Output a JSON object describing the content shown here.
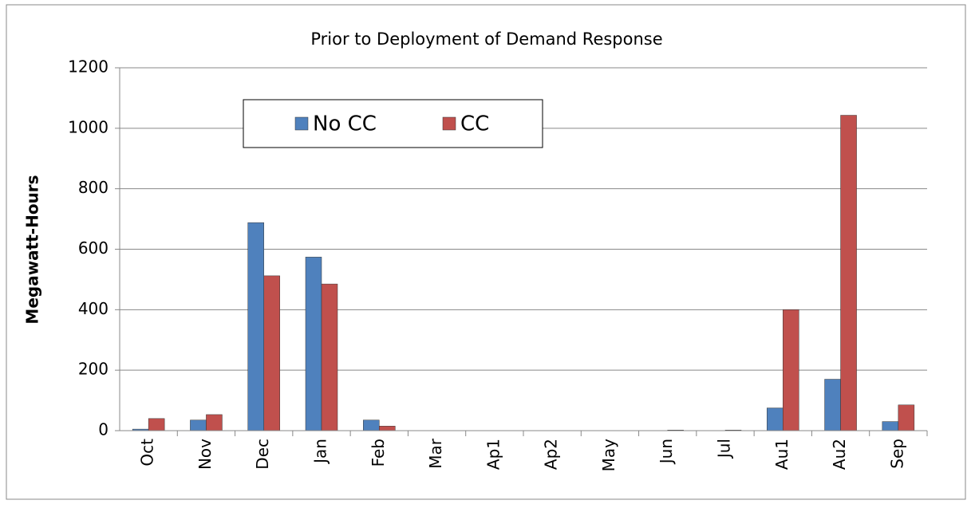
{
  "chart_data": {
    "type": "bar",
    "title": "Prior to Deployment of Demand Response",
    "y_label": "Megawatt-Hours",
    "categories": [
      "Oct",
      "Nov",
      "Dec",
      "Jan",
      "Feb",
      "Mar",
      "Ap1",
      "Ap2",
      "May",
      "Jun",
      "Jul",
      "Au1",
      "Au2",
      "Sep"
    ],
    "series": [
      {
        "name": "No CC",
        "color": "#4f81bd",
        "values": [
          5,
          35,
          688,
          574,
          35,
          0,
          0,
          0,
          0,
          0,
          0,
          75,
          170,
          30
        ]
      },
      {
        "name": "CC",
        "color": "#c0504d",
        "values": [
          40,
          53,
          512,
          485,
          15,
          0,
          0,
          0,
          0,
          2,
          2,
          400,
          1043,
          85
        ]
      }
    ],
    "ylim": [
      0,
      1200
    ],
    "yticks": [
      0,
      200,
      400,
      600,
      800,
      1000,
      1200
    ],
    "grid": true
  }
}
